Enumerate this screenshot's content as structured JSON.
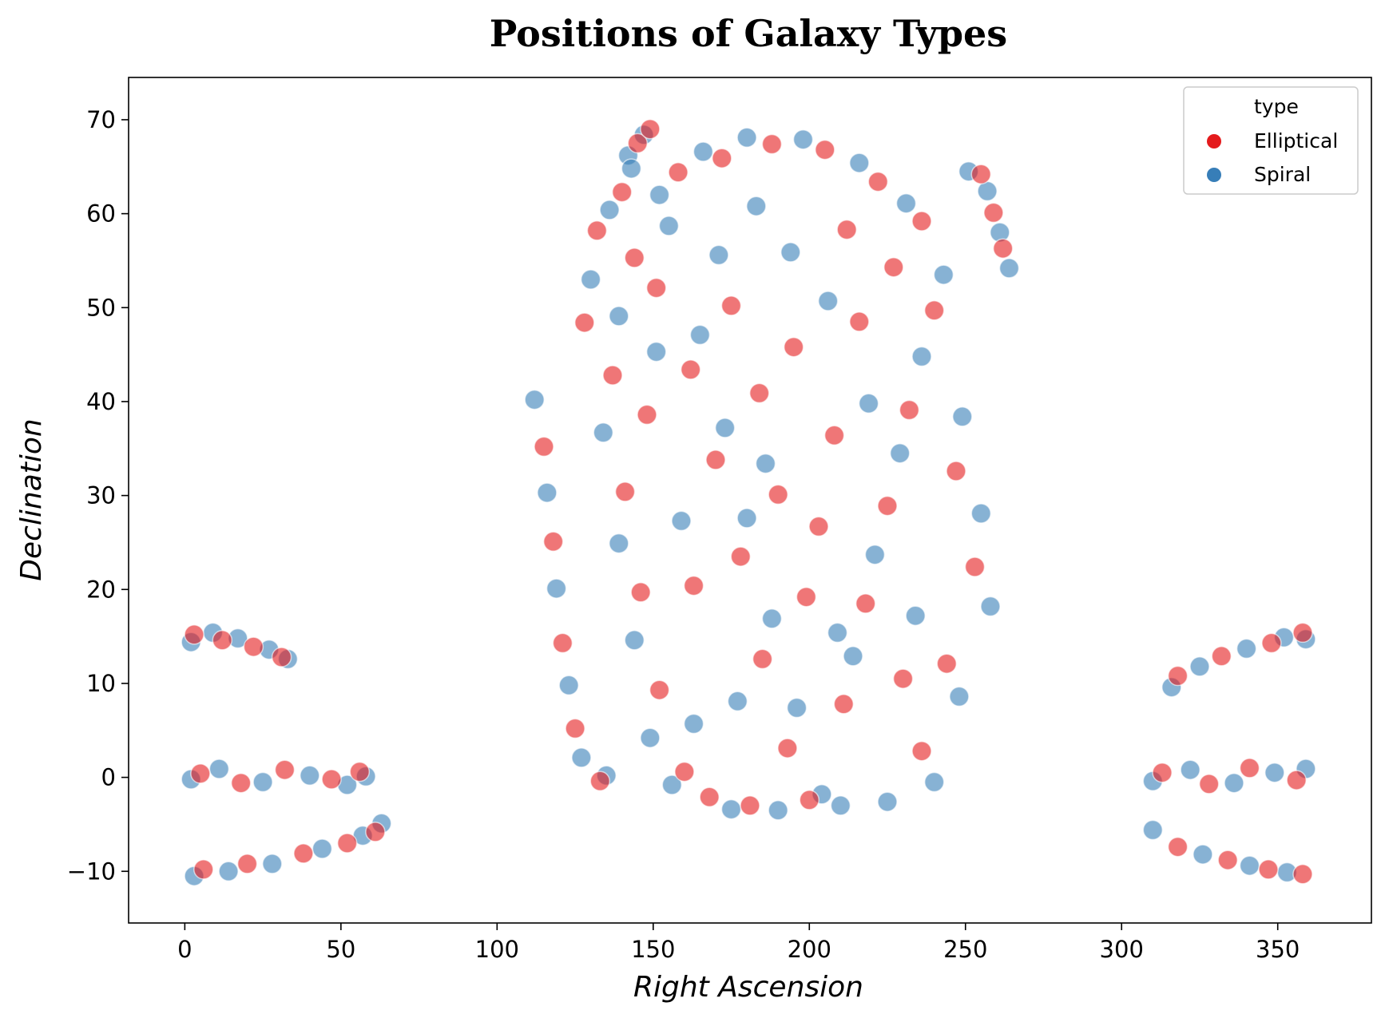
{
  "chart_data": {
    "type": "scatter",
    "title": "Positions of Galaxy Types",
    "xlabel": "Right Ascension",
    "ylabel": "Declination",
    "xlim": [
      -18,
      380
    ],
    "ylim": [
      -15.5,
      74.5
    ],
    "xticks": [
      0,
      50,
      100,
      150,
      200,
      250,
      300,
      350
    ],
    "yticks": [
      -10,
      0,
      10,
      20,
      30,
      40,
      50,
      60,
      70
    ],
    "grid": false,
    "legend": {
      "title": "type",
      "placement": "top-right",
      "entries": [
        {
          "label": "Elliptical",
          "color": "#e41a1c"
        },
        {
          "label": "Spiral",
          "color": "#377eb8"
        }
      ]
    },
    "marker_alpha": 0.3,
    "series": [
      {
        "name": "Elliptical",
        "color": "#e41a1c",
        "points": [
          [
            3,
            15.2
          ],
          [
            12,
            14.6
          ],
          [
            22,
            13.9
          ],
          [
            31,
            12.8
          ],
          [
            5,
            0.4
          ],
          [
            18,
            -0.6
          ],
          [
            32,
            0.8
          ],
          [
            47,
            -0.2
          ],
          [
            56,
            0.6
          ],
          [
            6,
            -9.8
          ],
          [
            20,
            -9.2
          ],
          [
            38,
            -8.1
          ],
          [
            52,
            -7.0
          ],
          [
            61,
            -5.8
          ],
          [
            318,
            10.8
          ],
          [
            332,
            12.9
          ],
          [
            348,
            14.3
          ],
          [
            358,
            15.4
          ],
          [
            313,
            0.5
          ],
          [
            328,
            -0.7
          ],
          [
            341,
            1.0
          ],
          [
            356,
            -0.3
          ],
          [
            318,
            -7.4
          ],
          [
            334,
            -8.8
          ],
          [
            347,
            -9.8
          ],
          [
            358,
            -10.3
          ],
          [
            255,
            64.2
          ],
          [
            259,
            60.1
          ],
          [
            262,
            56.3
          ],
          [
            145,
            67.5
          ],
          [
            149,
            69.0
          ],
          [
            115,
            35.2
          ],
          [
            118,
            25.1
          ],
          [
            121,
            14.3
          ],
          [
            125,
            5.2
          ],
          [
            133,
            -0.4
          ],
          [
            128,
            48.4
          ],
          [
            132,
            58.2
          ],
          [
            140,
            62.3
          ],
          [
            151,
            52.1
          ],
          [
            162,
            43.4
          ],
          [
            170,
            33.8
          ],
          [
            178,
            23.5
          ],
          [
            185,
            12.6
          ],
          [
            193,
            3.1
          ],
          [
            200,
            -2.4
          ],
          [
            211,
            7.8
          ],
          [
            218,
            18.5
          ],
          [
            225,
            28.9
          ],
          [
            232,
            39.1
          ],
          [
            240,
            49.7
          ],
          [
            236,
            59.2
          ],
          [
            222,
            63.4
          ],
          [
            205,
            66.8
          ],
          [
            188,
            67.4
          ],
          [
            172,
            65.9
          ],
          [
            158,
            64.4
          ],
          [
            144,
            55.3
          ],
          [
            137,
            42.8
          ],
          [
            141,
            30.4
          ],
          [
            146,
            19.7
          ],
          [
            152,
            9.3
          ],
          [
            160,
            0.6
          ],
          [
            168,
            -2.1
          ],
          [
            181,
            -3.0
          ],
          [
            195,
            45.8
          ],
          [
            208,
            36.4
          ],
          [
            216,
            48.5
          ],
          [
            227,
            54.3
          ],
          [
            247,
            32.6
          ],
          [
            253,
            22.4
          ],
          [
            244,
            12.1
          ],
          [
            236,
            2.8
          ],
          [
            190,
            30.1
          ],
          [
            175,
            50.2
          ],
          [
            163,
            20.4
          ],
          [
            199,
            19.2
          ],
          [
            212,
            58.3
          ],
          [
            230,
            10.5
          ],
          [
            148,
            38.6
          ],
          [
            184,
            40.9
          ],
          [
            203,
            26.7
          ]
        ]
      },
      {
        "name": "Spiral",
        "color": "#377eb8",
        "points": [
          [
            2,
            14.4
          ],
          [
            9,
            15.4
          ],
          [
            17,
            14.8
          ],
          [
            27,
            13.6
          ],
          [
            33,
            12.6
          ],
          [
            2,
            -0.2
          ],
          [
            11,
            0.9
          ],
          [
            25,
            -0.5
          ],
          [
            40,
            0.2
          ],
          [
            52,
            -0.8
          ],
          [
            58,
            0.1
          ],
          [
            3,
            -10.5
          ],
          [
            14,
            -10.0
          ],
          [
            28,
            -9.2
          ],
          [
            44,
            -7.6
          ],
          [
            57,
            -6.2
          ],
          [
            63,
            -4.9
          ],
          [
            316,
            9.6
          ],
          [
            325,
            11.8
          ],
          [
            340,
            13.7
          ],
          [
            352,
            14.9
          ],
          [
            359,
            14.7
          ],
          [
            310,
            -0.4
          ],
          [
            322,
            0.8
          ],
          [
            336,
            -0.6
          ],
          [
            349,
            0.5
          ],
          [
            359,
            0.9
          ],
          [
            310,
            -5.6
          ],
          [
            326,
            -8.2
          ],
          [
            341,
            -9.4
          ],
          [
            353,
            -10.1
          ],
          [
            251,
            64.5
          ],
          [
            257,
            62.4
          ],
          [
            261,
            58.0
          ],
          [
            264,
            54.2
          ],
          [
            142,
            66.2
          ],
          [
            147,
            68.4
          ],
          [
            112,
            40.2
          ],
          [
            116,
            30.3
          ],
          [
            119,
            20.1
          ],
          [
            123,
            9.8
          ],
          [
            127,
            2.1
          ],
          [
            135,
            0.2
          ],
          [
            130,
            53.0
          ],
          [
            136,
            60.4
          ],
          [
            143,
            64.8
          ],
          [
            155,
            58.7
          ],
          [
            165,
            47.1
          ],
          [
            173,
            37.2
          ],
          [
            180,
            27.6
          ],
          [
            188,
            16.9
          ],
          [
            196,
            7.4
          ],
          [
            204,
            -1.8
          ],
          [
            214,
            12.9
          ],
          [
            221,
            23.7
          ],
          [
            229,
            34.5
          ],
          [
            236,
            44.8
          ],
          [
            243,
            53.5
          ],
          [
            231,
            61.1
          ],
          [
            216,
            65.4
          ],
          [
            198,
            67.9
          ],
          [
            180,
            68.1
          ],
          [
            166,
            66.6
          ],
          [
            152,
            62.0
          ],
          [
            139,
            49.1
          ],
          [
            134,
            36.7
          ],
          [
            139,
            24.9
          ],
          [
            144,
            14.6
          ],
          [
            149,
            4.2
          ],
          [
            156,
            -0.8
          ],
          [
            175,
            -3.4
          ],
          [
            190,
            -3.5
          ],
          [
            210,
            -3.0
          ],
          [
            225,
            -2.6
          ],
          [
            249,
            38.4
          ],
          [
            255,
            28.1
          ],
          [
            258,
            18.2
          ],
          [
            248,
            8.6
          ],
          [
            240,
            -0.5
          ],
          [
            186,
            33.4
          ],
          [
            171,
            55.6
          ],
          [
            159,
            27.3
          ],
          [
            206,
            50.7
          ],
          [
            219,
            39.8
          ],
          [
            234,
            17.2
          ],
          [
            151,
            45.3
          ],
          [
            194,
            55.9
          ],
          [
            177,
            8.1
          ],
          [
            209,
            15.4
          ],
          [
            163,
            5.7
          ],
          [
            183,
            60.8
          ]
        ]
      }
    ]
  }
}
